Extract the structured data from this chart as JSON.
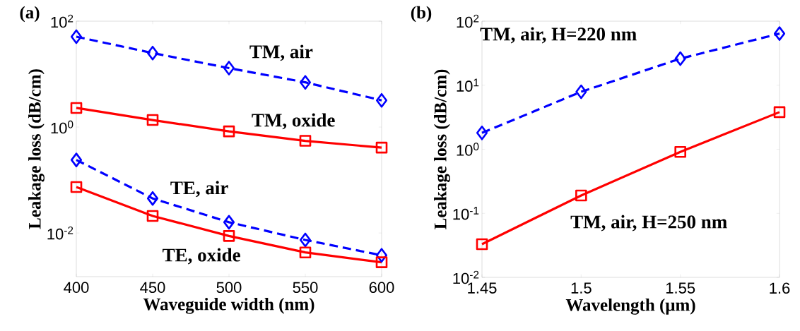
{
  "chart_data": [
    {
      "type": "line",
      "annotations": [
        "(a)"
      ],
      "xlabel": "Waveguide width (nm)",
      "ylabel": "Leakage loss (dB/cm)",
      "log": "y",
      "grid": false,
      "legend": false,
      "x": [
        400,
        450,
        500,
        550,
        600
      ],
      "xlim": [
        400,
        600
      ],
      "xticks": [
        400,
        450,
        500,
        550,
        600
      ],
      "ylim": [
        0.0015,
        100
      ],
      "yticks": [
        {
          "value": 100,
          "label": "10$^{2}$"
        },
        {
          "value": 1,
          "label": "10$^{0}$"
        },
        {
          "value": 0.01,
          "label": "10$^{-2}$"
        }
      ],
      "series": [
        {
          "name": "TM, air",
          "color": "#0000ff",
          "marker": "diamond",
          "line_style": "dashed",
          "values": [
            51,
            25,
            13,
            7.0,
            3.2
          ]
        },
        {
          "name": "TM, oxide",
          "color": "#ff0000",
          "marker": "square",
          "line_style": "solid",
          "values": [
            2.3,
            1.36,
            0.83,
            0.55,
            0.41
          ]
        },
        {
          "name": "TE, air",
          "color": "#0000ff",
          "marker": "diamond",
          "line_style": "dashed",
          "values": [
            0.24,
            0.045,
            0.016,
            0.0074,
            0.0038
          ]
        },
        {
          "name": "TE, oxide",
          "color": "#ff0000",
          "marker": "square",
          "line_style": "solid",
          "values": [
            0.074,
            0.021,
            0.0088,
            0.0043,
            0.0028
          ]
        }
      ]
    },
    {
      "type": "line",
      "annotations": [
        "(b)"
      ],
      "xlabel": "Wavelength (μm)",
      "ylabel": "Leakage loss (dB/cm)",
      "log": "y",
      "grid": false,
      "legend": false,
      "x": [
        1.45,
        1.5,
        1.55,
        1.6
      ],
      "xlim": [
        1.45,
        1.6
      ],
      "xticks": [
        1.45,
        1.5,
        1.55,
        1.6
      ],
      "ylim": [
        0.01,
        100
      ],
      "yticks": [
        {
          "value": 100,
          "label": "10$^{2}$"
        },
        {
          "value": 10,
          "label": "10$^{1}$"
        },
        {
          "value": 1,
          "label": "10$^{0}$"
        },
        {
          "value": 0.1,
          "label": "10$^{-1}$"
        },
        {
          "value": 0.01,
          "label": "10$^{-2}$"
        }
      ],
      "series": [
        {
          "name": "TM, air, H=220 nm",
          "color": "#0000ff",
          "marker": "diamond",
          "line_style": "dashed",
          "values": [
            1.8,
            7.9,
            26,
            64
          ]
        },
        {
          "name": "TM, air, H=250 nm",
          "color": "#ff0000",
          "marker": "square",
          "line_style": "solid",
          "values": [
            0.033,
            0.19,
            0.91,
            3.8
          ]
        }
      ]
    }
  ]
}
